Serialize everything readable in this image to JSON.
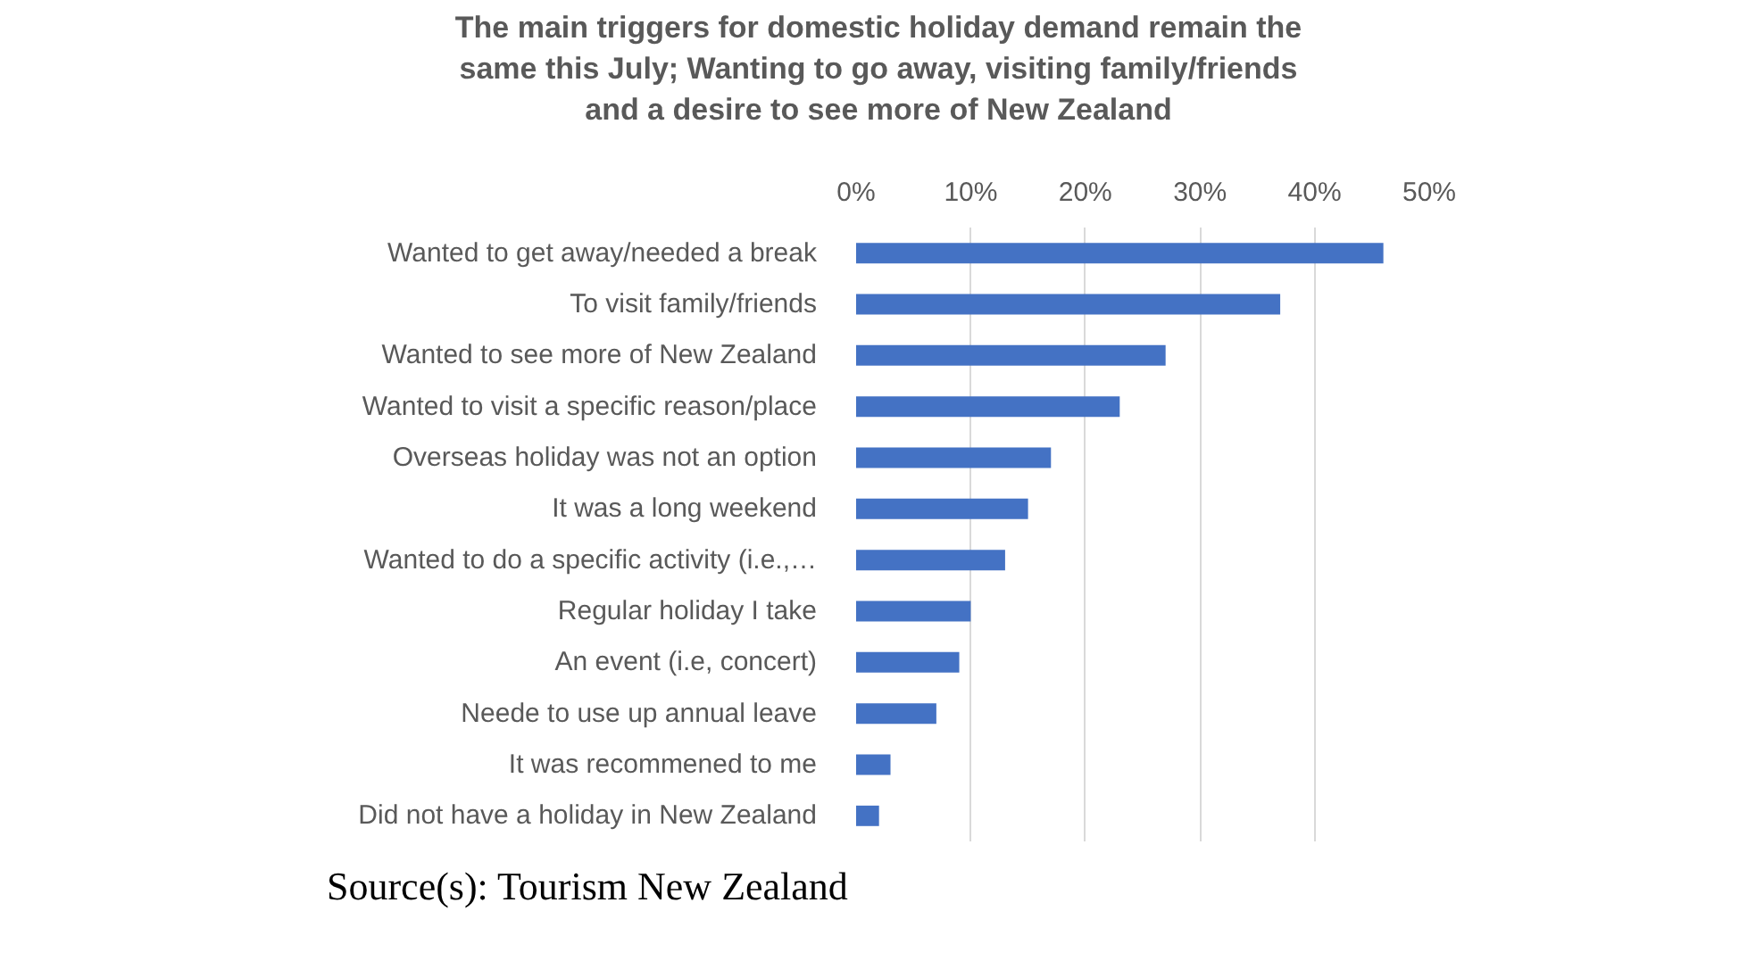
{
  "chart_data": {
    "type": "bar",
    "orientation": "horizontal",
    "title": "The main triggers for domestic holiday demand remain the\nsame this July; Wanting to go away, visiting family/friends\nand a desire to see more of New Zealand",
    "categories": [
      "Wanted to get away/needed a break",
      "To visit family/friends",
      "Wanted to see more of New Zealand",
      "Wanted to visit a specific reason/place",
      "Overseas holiday was not an option",
      "It was a long weekend",
      "Wanted to do a specific activity (i.e.,…",
      "Regular holiday I take",
      "An event (i.e, concert)",
      "Neede to use up annual leave",
      "It was recommened to me",
      "Did not have a holiday in New Zealand"
    ],
    "values": [
      46,
      37,
      27,
      23,
      17,
      15,
      13,
      10,
      9,
      7,
      3,
      2
    ],
    "color": "#4472c4",
    "xlim": [
      0,
      50
    ],
    "xticks": [
      {
        "value": 0,
        "label": "0%"
      },
      {
        "value": 10,
        "label": "10%"
      },
      {
        "value": 20,
        "label": "20%"
      },
      {
        "value": 30,
        "label": "30%"
      },
      {
        "value": 40,
        "label": "40%"
      },
      {
        "value": 50,
        "label": "50%"
      }
    ],
    "grid": "x",
    "annotations": [
      "Source(s): Tourism New Zealand"
    ]
  }
}
